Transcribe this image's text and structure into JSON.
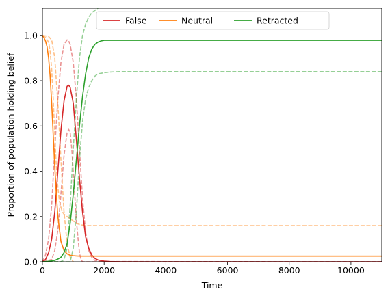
{
  "chart_data": {
    "type": "line",
    "title": "",
    "xlabel": "Time",
    "ylabel": "Proportion of population holding belief",
    "xlim": [
      0,
      11000
    ],
    "ylim": [
      0,
      1.12
    ],
    "xticks": [
      0,
      2000,
      4000,
      6000,
      8000,
      10000
    ],
    "xtick_labels": [
      "0",
      "2000",
      "4000",
      "6000",
      "8000",
      "10000"
    ],
    "yticks": [
      0.0,
      0.2,
      0.4,
      0.6,
      0.8,
      1.0
    ],
    "ytick_labels": [
      "0.0",
      "0.2",
      "0.4",
      "0.6",
      "0.8",
      "1.0"
    ],
    "grid": false,
    "legend": {
      "placement": "top-center",
      "ncol": 3
    },
    "series": [
      {
        "name": "False",
        "color": "#d62728",
        "style": "solid",
        "opacity": 1.0,
        "x": [
          0,
          100,
          200,
          300,
          400,
          500,
          600,
          700,
          800,
          850,
          900,
          1000,
          1100,
          1200,
          1300,
          1400,
          1500,
          1600,
          1700,
          1800,
          2000,
          2200,
          2600,
          11000
        ],
        "y": [
          0.0,
          0.01,
          0.04,
          0.1,
          0.22,
          0.4,
          0.58,
          0.71,
          0.775,
          0.78,
          0.77,
          0.7,
          0.54,
          0.37,
          0.22,
          0.11,
          0.06,
          0.03,
          0.015,
          0.008,
          0.003,
          0.001,
          0.0,
          0.0
        ]
      },
      {
        "name": "Neutral",
        "color": "#ff7f0e",
        "style": "solid",
        "opacity": 1.0,
        "x": [
          0,
          50,
          100,
          150,
          200,
          250,
          300,
          350,
          400,
          450,
          500,
          600,
          700,
          800,
          900,
          1000,
          1100,
          1200,
          1300,
          1400,
          1600,
          1800,
          2000,
          11000
        ],
        "y": [
          1.0,
          0.99,
          0.975,
          0.95,
          0.9,
          0.82,
          0.7,
          0.56,
          0.42,
          0.3,
          0.2,
          0.09,
          0.05,
          0.035,
          0.029,
          0.027,
          0.026,
          0.025,
          0.025,
          0.025,
          0.025,
          0.025,
          0.025,
          0.025
        ]
      },
      {
        "name": "Retracted",
        "color": "#2ca02c",
        "style": "solid",
        "opacity": 1.0,
        "x": [
          0,
          200,
          400,
          500,
          600,
          700,
          800,
          900,
          1000,
          1100,
          1200,
          1300,
          1400,
          1500,
          1600,
          1700,
          1800,
          1900,
          2000,
          2200,
          2600,
          11000
        ],
        "y": [
          0.0,
          0.002,
          0.006,
          0.012,
          0.02,
          0.04,
          0.08,
          0.17,
          0.3,
          0.45,
          0.6,
          0.73,
          0.83,
          0.9,
          0.94,
          0.96,
          0.97,
          0.975,
          0.978,
          0.978,
          0.978,
          0.978
        ]
      },
      {
        "name": "",
        "color": "#d62728",
        "style": "dashed",
        "opacity": 0.5,
        "x": [
          0,
          100,
          200,
          300,
          400,
          500,
          600,
          700,
          800,
          850,
          900,
          1000,
          1100,
          1200,
          1300,
          1400,
          1500,
          1600,
          1700,
          2000,
          11000
        ],
        "y": [
          0.0,
          0.03,
          0.1,
          0.25,
          0.5,
          0.72,
          0.88,
          0.96,
          0.98,
          0.975,
          0.96,
          0.88,
          0.72,
          0.5,
          0.28,
          0.13,
          0.05,
          0.02,
          0.006,
          0.001,
          0.0
        ]
      },
      {
        "name": "",
        "color": "#d62728",
        "style": "dashed",
        "opacity": 0.5,
        "x": [
          0,
          300,
          400,
          500,
          600,
          700,
          800,
          850,
          900,
          950,
          1000,
          1100,
          1200,
          1250,
          1300,
          11000
        ],
        "y": [
          0.0,
          0.01,
          0.05,
          0.14,
          0.3,
          0.47,
          0.57,
          0.585,
          0.57,
          0.5,
          0.4,
          0.18,
          0.04,
          0.01,
          0.0,
          0.0
        ]
      },
      {
        "name": "",
        "color": "#ff7f0e",
        "style": "dashed",
        "opacity": 0.5,
        "x": [
          0,
          100,
          200,
          250,
          300,
          350,
          400,
          450,
          500,
          550,
          600,
          650,
          700,
          800,
          900,
          1000,
          1100,
          1200,
          1300,
          1400,
          2000,
          11000
        ],
        "y": [
          1.0,
          0.99,
          0.97,
          0.93,
          0.85,
          0.72,
          0.56,
          0.42,
          0.33,
          0.27,
          0.24,
          0.22,
          0.21,
          0.2,
          0.19,
          0.18,
          0.17,
          0.165,
          0.162,
          0.16,
          0.16,
          0.16
        ]
      },
      {
        "name": "",
        "color": "#ff7f0e",
        "style": "dashed",
        "opacity": 0.5,
        "x": [
          0,
          200,
          300,
          400,
          500,
          600,
          700,
          800,
          900,
          1000
        ],
        "y": [
          1.0,
          0.995,
          0.98,
          0.9,
          0.7,
          0.45,
          0.22,
          0.08,
          0.02,
          0.0
        ]
      },
      {
        "name": "",
        "color": "#2ca02c",
        "style": "dashed",
        "opacity": 0.5,
        "x": [
          0,
          600,
          700,
          800,
          900,
          1000,
          1100,
          1200,
          1300,
          1400,
          1500,
          1600,
          1700,
          1800,
          2000,
          2300,
          11000
        ],
        "y": [
          0.0,
          0.0,
          0.01,
          0.06,
          0.25,
          0.5,
          0.72,
          0.9,
          1.0,
          1.05,
          1.08,
          1.1,
          1.11,
          1.12,
          1.13,
          1.14,
          1.14
        ]
      },
      {
        "name": "",
        "color": "#2ca02c",
        "style": "dashed",
        "opacity": 0.5,
        "x": [
          0,
          900,
          1000,
          1100,
          1200,
          1300,
          1400,
          1500,
          1600,
          1700,
          1800,
          2000,
          2200,
          2500,
          11000
        ],
        "y": [
          0.0,
          0.0,
          0.06,
          0.22,
          0.45,
          0.62,
          0.72,
          0.77,
          0.8,
          0.82,
          0.83,
          0.835,
          0.838,
          0.84,
          0.84
        ]
      }
    ]
  }
}
